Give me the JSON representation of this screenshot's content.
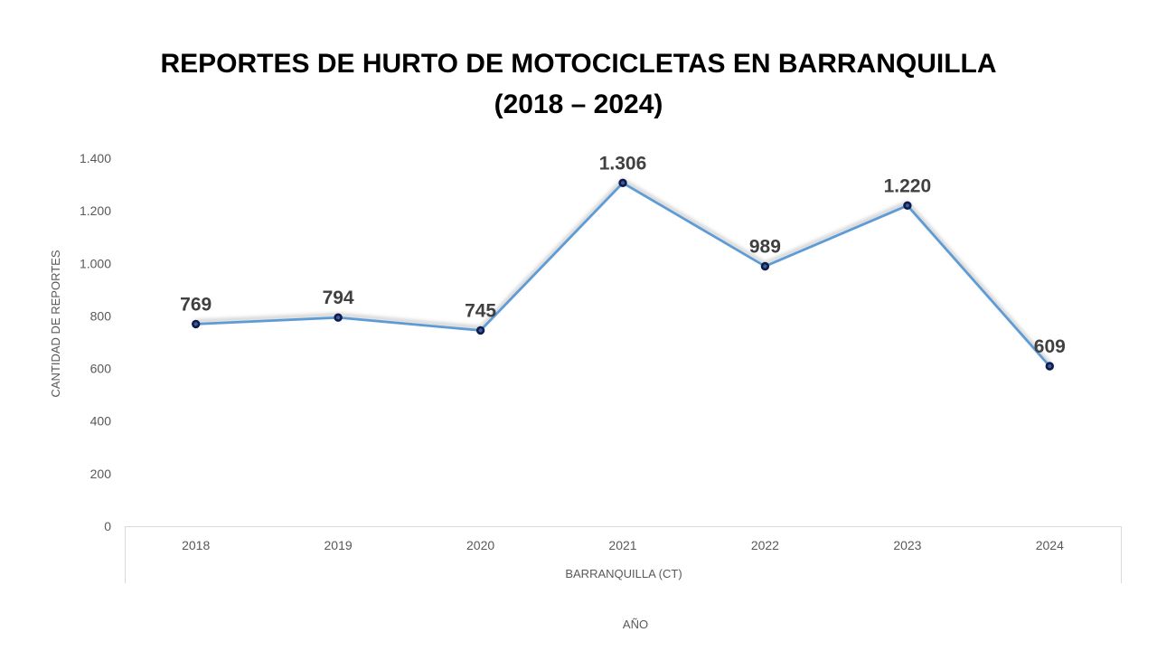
{
  "chart_data": {
    "type": "line",
    "title": [
      "REPORTES DE HURTO DE MOTOCICLETAS EN BARRANQUILLA",
      "(2018 – 2024)"
    ],
    "categories": [
      "2018",
      "2019",
      "2020",
      "2021",
      "2022",
      "2023",
      "2024"
    ],
    "category_group": "BARRANQUILLA (CT)",
    "series": [
      {
        "values": [
          769,
          794,
          745,
          1306,
          989,
          1220,
          609
        ],
        "data_labels": [
          "769",
          "794",
          "745",
          "1.306",
          "989",
          "1.220",
          "609"
        ]
      }
    ],
    "xlabel": "AÑO",
    "ylabel": "CANTIDAD DE REPORTES",
    "ylim": [
      0,
      1400
    ],
    "yticks": [
      0,
      200,
      400,
      600,
      800,
      1000,
      1200,
      1400
    ],
    "ytick_labels": [
      "0",
      "200",
      "400",
      "600",
      "800",
      "1.000",
      "1.200",
      "1.400"
    ],
    "grid": false,
    "legend": false,
    "colors": {
      "line": "#5B9BD5",
      "marker": "#0D1B4F",
      "data_label": "#404040",
      "axis_text": "#595959"
    }
  }
}
